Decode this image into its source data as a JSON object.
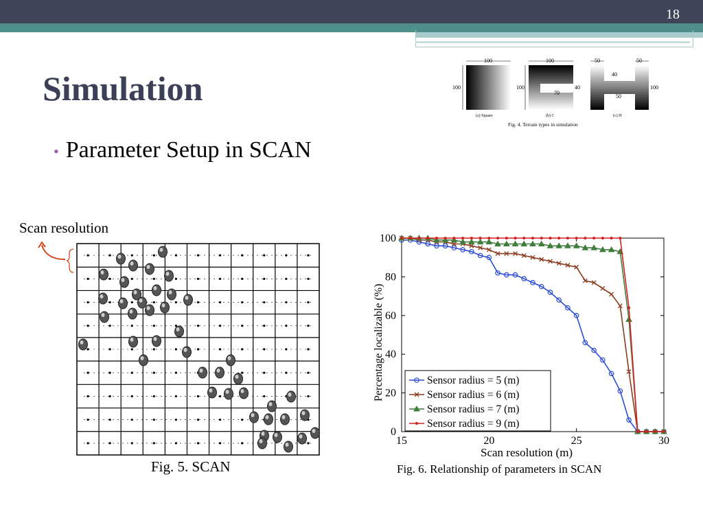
{
  "slide_number": "18",
  "title": "Simulation",
  "bullet": "Parameter Setup in SCAN",
  "scan_label": "Scan resolution",
  "fig4": {
    "caption": "Fig. 4.  Terrain types in simulation",
    "sub_a": "(a) Square",
    "sub_b": "(b) C",
    "sub_c": "(c) H",
    "dims": [
      "100",
      "100",
      "100",
      "100",
      "70",
      "40",
      "50",
      "50",
      "40",
      "50",
      "100"
    ]
  },
  "fig5": {
    "caption": "Fig. 5.  SCAN"
  },
  "colors": {
    "blue": "#2a4bd7",
    "brown": "#8b3a1e",
    "green": "#3f7d3a",
    "red": "#d42020"
  },
  "chart_data": {
    "type": "line",
    "title": "Fig. 6. Relationship of parameters in SCAN",
    "xlabel": "Scan resolution (m)",
    "ylabel": "Percentage localizable (%)",
    "xlim": [
      15,
      30
    ],
    "ylim": [
      0,
      100
    ],
    "xticks": [
      "15",
      "20",
      "25",
      "30"
    ],
    "yticks": [
      "0",
      "20",
      "40",
      "60",
      "80",
      "100"
    ],
    "legend_position": "bottom-left",
    "series": [
      {
        "name": "Sensor radius = 5 (m)",
        "color": "#2a4bd7",
        "marker": "circle",
        "x": [
          15,
          15.5,
          16,
          16.5,
          17,
          17.5,
          18,
          18.5,
          19,
          19.5,
          20,
          20.5,
          21,
          21.5,
          22,
          22.5,
          23,
          23.5,
          24,
          24.5,
          25,
          25.5,
          26,
          26.5,
          27,
          27.5,
          28,
          28.5,
          29,
          29.5,
          30
        ],
        "y": [
          99,
          99,
          98,
          97,
          96,
          96,
          95,
          94,
          93,
          91,
          90,
          82,
          81,
          81,
          79,
          77,
          75,
          72,
          68,
          64,
          60,
          46,
          42,
          37,
          30,
          21,
          6,
          0,
          0,
          0,
          0
        ]
      },
      {
        "name": "Sensor radius = 6 (m)",
        "color": "#8b3a1e",
        "marker": "x",
        "x": [
          15,
          15.5,
          16,
          16.5,
          17,
          17.5,
          18,
          18.5,
          19,
          19.5,
          20,
          20.5,
          21,
          21.5,
          22,
          22.5,
          23,
          23.5,
          24,
          24.5,
          25,
          25.5,
          26,
          26.5,
          27,
          27.5,
          28,
          28.5,
          29,
          29.5,
          30
        ],
        "y": [
          100,
          100,
          99,
          99,
          98,
          98,
          97,
          97,
          96,
          95,
          94,
          92,
          92,
          92,
          91,
          90,
          89,
          88,
          87,
          86,
          85,
          78,
          77,
          74,
          71,
          65,
          31,
          0,
          0,
          0,
          0
        ]
      },
      {
        "name": "Sensor radius = 7 (m)",
        "color": "#3f7d3a",
        "marker": "triangle",
        "x": [
          15,
          15.5,
          16,
          16.5,
          17,
          17.5,
          18,
          18.5,
          19,
          19.5,
          20,
          20.5,
          21,
          21.5,
          22,
          22.5,
          23,
          23.5,
          24,
          24.5,
          25,
          25.5,
          26,
          26.5,
          27,
          27.5,
          28,
          28.5,
          29,
          29.5,
          30
        ],
        "y": [
          100,
          100,
          100,
          100,
          99,
          99,
          99,
          98,
          98,
          98,
          98,
          97,
          97,
          97,
          97,
          97,
          97,
          96,
          96,
          96,
          96,
          95,
          95,
          94,
          94,
          93,
          58,
          0,
          0,
          0,
          0
        ]
      },
      {
        "name": "Sensor radius = 9 (m)",
        "color": "#d42020",
        "marker": "dot",
        "x": [
          15,
          15.5,
          16,
          16.5,
          17,
          17.5,
          18,
          18.5,
          19,
          19.5,
          20,
          20.5,
          21,
          21.5,
          22,
          22.5,
          23,
          23.5,
          24,
          24.5,
          25,
          25.5,
          26,
          26.5,
          27,
          27.5,
          28,
          28.5,
          29,
          29.5,
          30
        ],
        "y": [
          100,
          100,
          100,
          100,
          100,
          100,
          100,
          100,
          100,
          100,
          100,
          100,
          100,
          100,
          100,
          100,
          100,
          100,
          100,
          100,
          100,
          100,
          100,
          100,
          100,
          100,
          64,
          0,
          0,
          0,
          0
        ]
      }
    ]
  }
}
